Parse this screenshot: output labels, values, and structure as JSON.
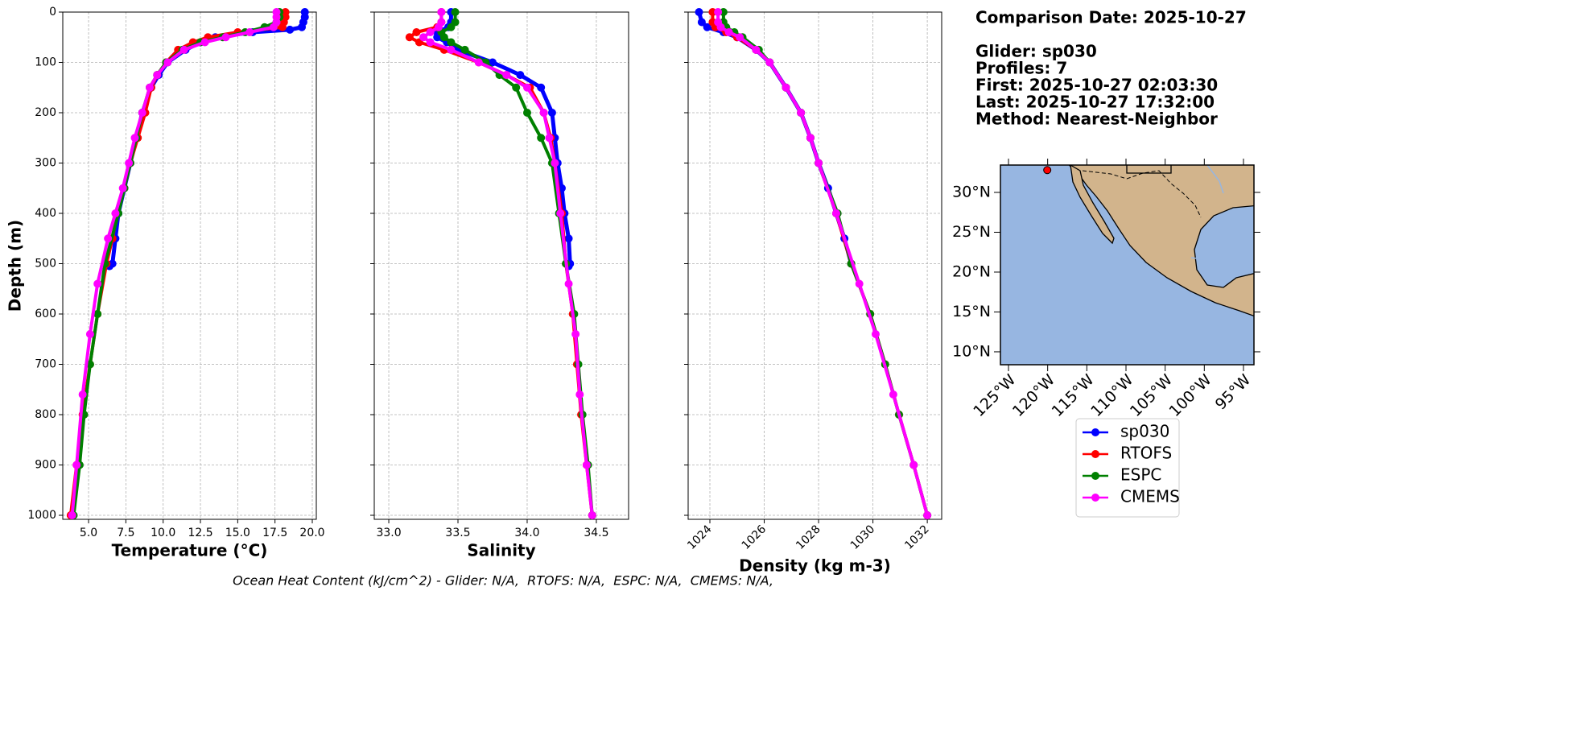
{
  "info": [
    "Comparison Date: 2025-10-27",
    "Glider: sp030",
    "Profiles: 7",
    "First: 2025-10-27 02:03:30",
    "Last: 2025-10-27 17:32:00",
    "Method: Nearest-Neighbor"
  ],
  "footer": "Ocean Heat Content (kJ/cm^2) - Glider: N/A,  RTOFS: N/A,  ESPC: N/A,  CMEMS: N/A,",
  "chart_data": [
    {
      "type": "line",
      "xlabel": "Temperature (°C)",
      "ylabel": "Depth (m)",
      "grid": true,
      "show_ytick_labels": true,
      "xlim": [
        3.27,
        20.27
      ],
      "xticks": [
        {
          "value": 5,
          "label": "5.0"
        },
        7.5,
        {
          "value": 10,
          "label": "10.0"
        },
        12.5,
        {
          "value": 15,
          "label": "15.0"
        },
        17.5,
        {
          "value": 20,
          "label": "20.0"
        }
      ],
      "ylim": [
        1008,
        0
      ],
      "yticks": [
        0,
        100,
        200,
        300,
        400,
        500,
        600,
        700,
        800,
        900,
        1000
      ],
      "series": [
        {
          "name": "sp030",
          "color": "#0000ff",
          "x": [
            19.5,
            19.5,
            19.4,
            19.3,
            18.5,
            16.0,
            13.5,
            12.5,
            11.5,
            10.3,
            9.7,
            9.2,
            8.6,
            8.2,
            7.8,
            7.4,
            7.0,
            6.8,
            6.6,
            6.4
          ],
          "values": [
            0,
            10,
            20,
            30,
            35,
            40,
            50,
            60,
            75,
            100,
            125,
            150,
            200,
            250,
            300,
            350,
            400,
            450,
            500,
            505
          ]
        },
        {
          "name": "RTOFS",
          "color": "#ff0000",
          "x": [
            18.2,
            18.2,
            18.1,
            18.0,
            15.0,
            13.0,
            12.0,
            11.0,
            10.2,
            9.6,
            9.2,
            8.8,
            8.3,
            7.8,
            7.4,
            6.9,
            6.6,
            6.2,
            5.6,
            5.1,
            4.6,
            4.2,
            3.8
          ],
          "values": [
            0,
            10,
            20,
            30,
            40,
            50,
            60,
            75,
            100,
            125,
            150,
            200,
            250,
            300,
            350,
            400,
            450,
            500,
            600,
            700,
            800,
            900,
            1000
          ]
        },
        {
          "name": "ESPC",
          "color": "#008000",
          "x": [
            17.8,
            17.8,
            17.6,
            16.8,
            15.5,
            14.0,
            12.5,
            11.3,
            10.2,
            9.6,
            9.1,
            8.6,
            8.2,
            7.8,
            7.4,
            7.0,
            6.1,
            5.6,
            5.1,
            4.7,
            4.4,
            4.0
          ],
          "values": [
            0,
            10,
            20,
            30,
            40,
            50,
            60,
            75,
            100,
            125,
            150,
            200,
            250,
            300,
            350,
            400,
            500,
            600,
            700,
            800,
            900,
            1000
          ]
        },
        {
          "name": "CMEMS",
          "color": "#ff00ff",
          "x": [
            17.6,
            17.6,
            17.6,
            17.4,
            15.8,
            14.2,
            12.8,
            11.4,
            10.3,
            9.6,
            9.1,
            8.6,
            8.1,
            7.7,
            7.3,
            6.8,
            6.3,
            5.6,
            5.1,
            4.6,
            4.2,
            3.9
          ],
          "values": [
            0,
            10,
            20,
            30,
            40,
            50,
            60,
            75,
            100,
            125,
            150,
            200,
            250,
            300,
            350,
            400,
            450,
            540,
            640,
            760,
            900,
            1000
          ]
        }
      ]
    },
    {
      "type": "line",
      "xlabel": "Salinity",
      "grid": true,
      "show_ytick_labels": false,
      "xlim": [
        32.895,
        34.733
      ],
      "xticks": [
        {
          "value": 33,
          "label": "33.0"
        },
        33.5,
        {
          "value": 34,
          "label": "34.0"
        },
        34.5
      ],
      "ylim": [
        1008,
        0
      ],
      "yticks": [
        0,
        100,
        200,
        300,
        400,
        500,
        600,
        700,
        800,
        900,
        1000
      ],
      "series": [
        {
          "color": "#0000ff",
          "x": [
            33.45,
            33.45,
            33.43,
            33.35,
            33.35,
            33.42,
            33.5,
            33.75,
            33.95,
            34.1,
            34.18,
            34.2,
            34.22,
            34.25,
            34.27,
            34.3,
            34.31,
            34.3
          ],
          "values": [
            0,
            20,
            30,
            40,
            50,
            60,
            75,
            100,
            125,
            150,
            200,
            250,
            300,
            350,
            400,
            450,
            500,
            505
          ]
        },
        {
          "color": "#ff0000",
          "x": [
            33.38,
            33.38,
            33.35,
            33.2,
            33.15,
            33.22,
            33.4,
            33.65,
            33.85,
            34.02,
            34.12,
            34.17,
            34.2,
            34.25,
            34.28,
            34.33,
            34.36,
            34.39,
            34.43,
            34.47
          ],
          "values": [
            0,
            20,
            30,
            40,
            50,
            60,
            75,
            100,
            125,
            150,
            200,
            250,
            300,
            400,
            500,
            600,
            700,
            800,
            900,
            1000
          ]
        },
        {
          "color": "#008000",
          "x": [
            33.48,
            33.48,
            33.45,
            33.38,
            33.4,
            33.45,
            33.55,
            33.7,
            33.8,
            33.92,
            34.0,
            34.1,
            34.18,
            34.23,
            34.28,
            34.34,
            34.37,
            34.4,
            34.44,
            34.47
          ],
          "values": [
            0,
            20,
            30,
            40,
            50,
            60,
            75,
            100,
            125,
            150,
            200,
            250,
            300,
            400,
            500,
            600,
            700,
            800,
            900,
            1000
          ]
        },
        {
          "color": "#ff00ff",
          "x": [
            33.38,
            33.38,
            33.36,
            33.3,
            33.25,
            33.3,
            33.45,
            33.65,
            33.85,
            34.0,
            34.12,
            34.16,
            34.2,
            34.24,
            34.3,
            34.35,
            34.38,
            34.43,
            34.47
          ],
          "values": [
            0,
            20,
            30,
            40,
            50,
            60,
            75,
            100,
            125,
            150,
            200,
            250,
            300,
            400,
            540,
            640,
            760,
            900,
            1000
          ]
        }
      ]
    },
    {
      "type": "line",
      "xlabel": "Density (kg m-3)",
      "grid": true,
      "show_ytick_labels": false,
      "xtick_rotation": 45,
      "xlim": [
        1023.2,
        1032.53
      ],
      "xticks": [
        1024,
        1026,
        1028,
        1030,
        1032
      ],
      "ylim": [
        1008,
        0
      ],
      "yticks": [
        0,
        100,
        200,
        300,
        400,
        500,
        600,
        700,
        800,
        900,
        1000
      ],
      "series": [
        {
          "color": "#0000ff",
          "x": [
            1023.6,
            1023.7,
            1023.9,
            1024.5,
            1025.0,
            1025.7,
            1026.2,
            1026.8,
            1027.35,
            1027.7,
            1028.0,
            1028.35,
            1028.65,
            1028.95,
            1029.2
          ],
          "values": [
            0,
            20,
            30,
            40,
            50,
            75,
            100,
            150,
            200,
            250,
            300,
            350,
            400,
            450,
            500
          ]
        },
        {
          "color": "#ff0000",
          "x": [
            1024.1,
            1024.1,
            1024.2,
            1024.6,
            1025.0,
            1025.7,
            1026.2,
            1026.8,
            1027.35,
            1027.7,
            1028.0,
            1028.65,
            1029.2,
            1029.9,
            1030.45,
            1030.96,
            1031.5,
            1032.0
          ],
          "values": [
            0,
            20,
            30,
            40,
            50,
            75,
            100,
            150,
            200,
            250,
            300,
            400,
            500,
            600,
            700,
            800,
            900,
            1000
          ]
        },
        {
          "color": "#008000",
          "x": [
            1024.5,
            1024.5,
            1024.6,
            1024.9,
            1025.2,
            1025.8,
            1026.2,
            1026.8,
            1027.35,
            1027.7,
            1028.0,
            1028.7,
            1029.2,
            1029.9,
            1030.45,
            1030.96,
            1031.5,
            1032.0
          ],
          "values": [
            0,
            20,
            30,
            40,
            50,
            75,
            100,
            150,
            200,
            250,
            300,
            400,
            500,
            600,
            700,
            800,
            900,
            1000
          ]
        },
        {
          "color": "#ff00ff",
          "x": [
            1024.3,
            1024.3,
            1024.4,
            1024.7,
            1025.1,
            1025.7,
            1026.2,
            1026.8,
            1027.35,
            1027.7,
            1028.0,
            1028.65,
            1029.5,
            1030.1,
            1030.75,
            1031.5,
            1032.0
          ],
          "values": [
            0,
            20,
            30,
            40,
            50,
            75,
            100,
            150,
            200,
            250,
            300,
            400,
            540,
            640,
            760,
            900,
            1000
          ]
        }
      ]
    },
    {
      "type": "map",
      "color": "#ff0000",
      "xlim": [
        -126.03,
        -93.66
      ],
      "xticks": [
        {
          "value": -125,
          "label": "125°W"
        },
        {
          "value": -120,
          "label": "120°W"
        },
        {
          "value": -115,
          "label": "115°W"
        },
        {
          "value": -110,
          "label": "110°W"
        },
        {
          "value": -105,
          "label": "105°W"
        },
        {
          "value": -100,
          "label": "100°W"
        },
        {
          "value": -95,
          "label": "95°W"
        }
      ],
      "ylim": [
        8.38,
        33.43
      ],
      "yticks": [
        {
          "value": 10,
          "label": "10°N"
        },
        {
          "value": 15,
          "label": "15°N"
        },
        {
          "value": 20,
          "label": "20°N"
        },
        {
          "value": 25,
          "label": "25°N"
        },
        {
          "value": 30,
          "label": "30°N"
        }
      ],
      "x": [
        -120.05
      ],
      "values": [
        32.8
      ]
    }
  ]
}
